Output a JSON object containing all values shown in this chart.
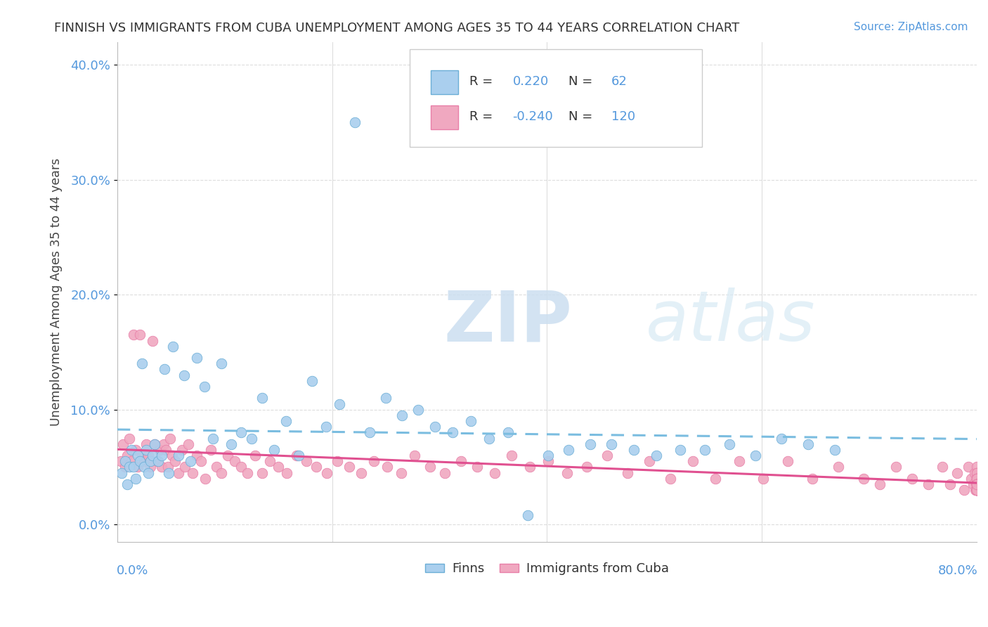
{
  "title": "FINNISH VS IMMIGRANTS FROM CUBA UNEMPLOYMENT AMONG AGES 35 TO 44 YEARS CORRELATION CHART",
  "source": "Source: ZipAtlas.com",
  "ylabel": "Unemployment Among Ages 35 to 44 years",
  "ytick_vals": [
    0.0,
    10.0,
    20.0,
    30.0,
    40.0
  ],
  "xlim": [
    0.0,
    80.0
  ],
  "ylim": [
    -1.5,
    42.0
  ],
  "finns_R": 0.22,
  "finns_N": 62,
  "cuba_R": -0.24,
  "cuba_N": 120,
  "finns_color": "#aacfee",
  "cuba_color": "#f0a8c0",
  "finns_edge_color": "#6baed6",
  "cuba_edge_color": "#e87fa8",
  "finns_line_color": "#7bbde0",
  "cuba_line_color": "#e05090",
  "legend_finns_label": "Finns",
  "legend_cuba_label": "Immigrants from Cuba",
  "finns_x": [
    0.4,
    0.7,
    0.9,
    1.1,
    1.3,
    1.5,
    1.7,
    1.9,
    2.1,
    2.3,
    2.5,
    2.7,
    2.9,
    3.1,
    3.3,
    3.5,
    3.8,
    4.1,
    4.4,
    4.8,
    5.2,
    5.7,
    6.2,
    6.8,
    7.4,
    8.1,
    8.9,
    9.7,
    10.6,
    11.5,
    12.5,
    13.5,
    14.6,
    15.7,
    16.9,
    18.1,
    19.4,
    20.7,
    22.1,
    23.5,
    25.0,
    26.5,
    28.0,
    29.6,
    31.2,
    32.9,
    34.6,
    36.4,
    38.2,
    40.1,
    42.0,
    44.0,
    46.0,
    48.1,
    50.2,
    52.4,
    54.7,
    57.0,
    59.4,
    61.8,
    64.3,
    66.8
  ],
  "finns_y": [
    4.5,
    5.5,
    3.5,
    5.0,
    6.5,
    5.0,
    4.0,
    6.0,
    5.5,
    14.0,
    5.0,
    6.5,
    4.5,
    5.5,
    6.0,
    7.0,
    5.5,
    6.0,
    13.5,
    4.5,
    15.5,
    6.0,
    13.0,
    5.5,
    14.5,
    12.0,
    7.5,
    14.0,
    7.0,
    8.0,
    7.5,
    11.0,
    6.5,
    9.0,
    6.0,
    12.5,
    8.5,
    10.5,
    35.0,
    8.0,
    11.0,
    9.5,
    10.0,
    8.5,
    8.0,
    9.0,
    7.5,
    8.0,
    0.8,
    6.0,
    6.5,
    7.0,
    7.0,
    6.5,
    6.0,
    6.5,
    6.5,
    7.0,
    6.0,
    7.5,
    7.0,
    6.5
  ],
  "cuba_x": [
    0.3,
    0.5,
    0.7,
    0.9,
    1.1,
    1.3,
    1.5,
    1.7,
    1.9,
    2.1,
    2.3,
    2.5,
    2.7,
    2.9,
    3.1,
    3.3,
    3.5,
    3.7,
    3.9,
    4.1,
    4.3,
    4.5,
    4.7,
    4.9,
    5.1,
    5.4,
    5.7,
    6.0,
    6.3,
    6.6,
    7.0,
    7.4,
    7.8,
    8.2,
    8.7,
    9.2,
    9.7,
    10.3,
    10.9,
    11.5,
    12.1,
    12.8,
    13.5,
    14.2,
    15.0,
    15.8,
    16.7,
    17.6,
    18.5,
    19.5,
    20.5,
    21.6,
    22.7,
    23.9,
    25.1,
    26.4,
    27.7,
    29.1,
    30.5,
    32.0,
    33.5,
    35.1,
    36.7,
    38.4,
    40.1,
    41.9,
    43.7,
    45.6,
    47.5,
    49.5,
    51.5,
    53.6,
    55.7,
    57.9,
    60.1,
    62.4,
    64.7,
    67.1,
    69.5,
    71.0,
    72.5,
    74.0,
    75.5,
    76.8,
    77.5,
    78.2,
    78.8,
    79.2,
    79.5,
    79.7,
    79.8,
    79.9,
    80.0,
    80.0,
    80.0,
    80.0,
    80.0,
    80.0,
    80.0,
    80.0,
    80.0,
    80.0,
    80.0,
    80.0,
    80.0,
    80.0,
    80.0,
    80.0,
    80.0,
    80.0,
    80.0,
    80.0,
    80.0,
    80.0,
    80.0,
    80.0,
    80.0,
    80.0,
    80.0,
    80.0
  ],
  "cuba_y": [
    5.5,
    7.0,
    5.0,
    6.0,
    7.5,
    5.5,
    16.5,
    6.5,
    5.0,
    16.5,
    6.0,
    5.5,
    7.0,
    6.0,
    5.0,
    16.0,
    7.0,
    5.5,
    6.5,
    5.0,
    7.0,
    6.5,
    5.0,
    7.5,
    6.0,
    5.5,
    4.5,
    6.5,
    5.0,
    7.0,
    4.5,
    6.0,
    5.5,
    4.0,
    6.5,
    5.0,
    4.5,
    6.0,
    5.5,
    5.0,
    4.5,
    6.0,
    4.5,
    5.5,
    5.0,
    4.5,
    6.0,
    5.5,
    5.0,
    4.5,
    5.5,
    5.0,
    4.5,
    5.5,
    5.0,
    4.5,
    6.0,
    5.0,
    4.5,
    5.5,
    5.0,
    4.5,
    6.0,
    5.0,
    5.5,
    4.5,
    5.0,
    6.0,
    4.5,
    5.5,
    4.0,
    5.5,
    4.0,
    5.5,
    4.0,
    5.5,
    4.0,
    5.0,
    4.0,
    3.5,
    5.0,
    4.0,
    3.5,
    5.0,
    3.5,
    4.5,
    3.0,
    5.0,
    4.0,
    3.5,
    4.5,
    3.0,
    5.0,
    3.5,
    4.0,
    3.0,
    4.5,
    3.5,
    4.0,
    3.0,
    4.5,
    3.0,
    4.0,
    3.5,
    3.0,
    4.0,
    3.5,
    3.0,
    4.0,
    3.5,
    3.0,
    3.5,
    3.0,
    3.5,
    3.0,
    3.5,
    3.0,
    3.5,
    3.0,
    3.5
  ]
}
